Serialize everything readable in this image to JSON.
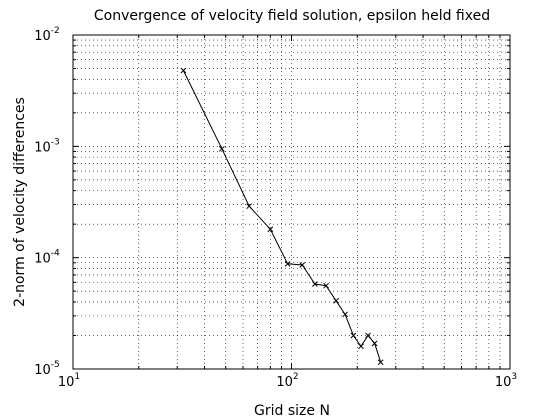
{
  "chart_data": {
    "type": "line",
    "title": "Convergence of velocity field solution, epsilon held fixed",
    "xlabel": "Grid size N",
    "ylabel": "2-norm of velocity differences",
    "xscale": "log",
    "yscale": "log",
    "xlim": [
      10,
      1000
    ],
    "ylim": [
      1e-05,
      0.01
    ],
    "grid": true,
    "grid_style": "dotted",
    "x_ticks": [
      {
        "base": "10",
        "exp": "1",
        "value": 10
      },
      {
        "base": "10",
        "exp": "2",
        "value": 100
      },
      {
        "base": "10",
        "exp": "3",
        "value": 1000
      }
    ],
    "y_ticks": [
      {
        "base": "10",
        "exp": "-5",
        "value": 1e-05
      },
      {
        "base": "10",
        "exp": "-4",
        "value": 0.0001
      },
      {
        "base": "10",
        "exp": "-3",
        "value": 0.001
      },
      {
        "base": "10",
        "exp": "-2",
        "value": 0.01
      }
    ],
    "series": [
      {
        "marker": "x",
        "color": "#000000",
        "x": [
          32,
          48,
          64,
          80,
          96,
          112,
          128,
          144,
          160,
          176,
          192,
          208,
          224,
          240,
          256
        ],
        "y": [
          0.0048,
          0.00095,
          0.00029,
          0.00018,
          8.8e-05,
          8.6e-05,
          5.8e-05,
          5.6e-05,
          4.1e-05,
          3.1e-05,
          2e-05,
          1.6e-05,
          2e-05,
          1.7e-05,
          1.15e-05
        ]
      }
    ]
  }
}
